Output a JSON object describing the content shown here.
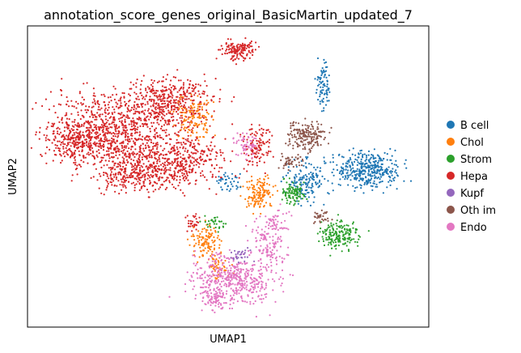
{
  "chart_data": {
    "type": "scatter",
    "title": "annotation_score_genes_original_BasicMartin_updated_7",
    "xlabel": "UMAP1",
    "ylabel": "UMAP2",
    "grid": false,
    "legend_position": "right",
    "categories": [
      {
        "name": "B cell",
        "color": "#1f77b4"
      },
      {
        "name": "Chol",
        "color": "#ff7f0e"
      },
      {
        "name": "Strom",
        "color": "#2ca02c"
      },
      {
        "name": "Hepa",
        "color": "#d62728"
      },
      {
        "name": "Kupf",
        "color": "#9467bd"
      },
      {
        "name": "Oth im",
        "color": "#8c564b"
      },
      {
        "name": "Endo",
        "color": "#e377c2"
      }
    ]
  }
}
